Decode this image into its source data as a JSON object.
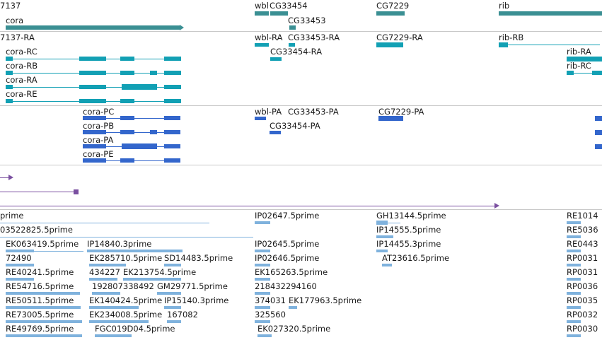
{
  "colors": {
    "gene": "#3a8f93",
    "transcript": "#12a0b4",
    "protein": "#3366cc",
    "misc": "#7a4fa0",
    "est": "#7fb2dd",
    "divider": "#c8c8c8"
  },
  "tracks": {
    "genes": {
      "labels": [
        "7137",
        "wbl",
        "CG33454",
        "CG33453",
        "CG7229",
        "rib",
        "cora"
      ]
    },
    "transcripts": {
      "labels": [
        "7137-RA",
        "wbl-RA",
        "CG33453-RA",
        "CG7229-RA",
        "rib-RB",
        "cora-RC",
        "CG33454-RA",
        "rib-RA",
        "cora-RB",
        "rib-RC",
        "cora-RA",
        "cora-RE"
      ]
    },
    "proteins": {
      "labels": [
        "wbl-PA",
        "CG33453-PA",
        "CG7229-PA",
        "cora-PC",
        "CG33454-PA",
        "cora-PB",
        "cora-PA",
        "cora-PE"
      ]
    },
    "ests": {
      "labels": [
        "prime",
        "IP02647.5prime",
        "GH13144.5prime",
        "RE1014",
        "03522825.5prime",
        "IP14555.5prime",
        "RE5036",
        "EK063419.5prime",
        "IP14840.3prime",
        "IP02645.5prime",
        "IP14455.3prime",
        "RE0443",
        "72490",
        "EK285710.5prime",
        "SD14483.5prime",
        "IP02646.5prime",
        "AT23616.5prime",
        "RP0031",
        "RE40241.5prime",
        "434227",
        "EK213754.5prime",
        "EK165263.5prime",
        "RP0031",
        "RE54716.5prime",
        "192807338492",
        "GM29771.5prime",
        "218432294160",
        "RP0036",
        "RE50511.5prime",
        "EK140424.5prime",
        "IP15140.3prime",
        "374031",
        "EK177963.5prime",
        "RP0035",
        "RE73005.5prime",
        "EK234008.5prime",
        "167082",
        "325560",
        "RP0032",
        "RE49769.5prime",
        "FGC019D04.5prime",
        "EK027320.5prime",
        "RP0030"
      ]
    }
  }
}
